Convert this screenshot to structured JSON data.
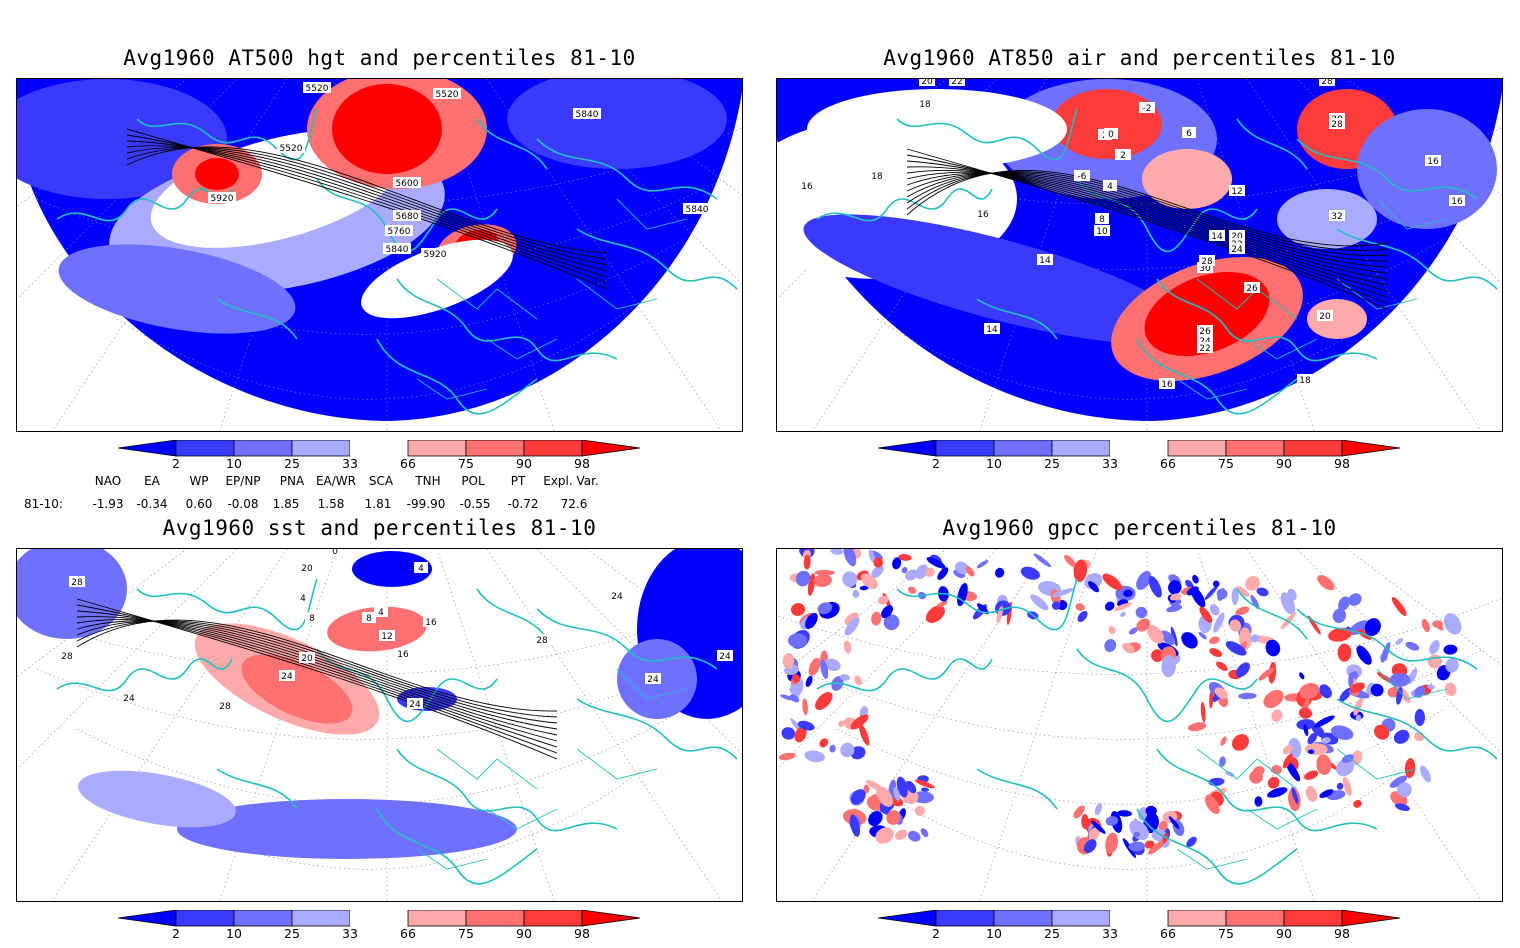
{
  "colors": {
    "blue_dark": "#0000ff",
    "blue_mid": "#3a3aff",
    "blue_light": "#7070ff",
    "blue_pale": "#aaaaff",
    "red_pale": "#ffaaaa",
    "red_light": "#ff7070",
    "red_mid": "#ff3a3a",
    "red_dark": "#ff0000",
    "coast": "#20c0c0",
    "contour": "#000000"
  },
  "panels": [
    {
      "id": "hgt",
      "title": "Avg1960 AT500 hgt and percentiles 81-10",
      "contour_labels": [
        "5520",
        "5520",
        "5520",
        "5840",
        "5920",
        "5600",
        "5680",
        "5760",
        "5840",
        "5920",
        "5840"
      ]
    },
    {
      "id": "air",
      "title": "Avg1960 AT850 air and percentiles 81-10",
      "contour_labels": [
        "20",
        "22",
        "18",
        "-2",
        "2",
        "0",
        "-2",
        "2",
        "6",
        "-6",
        "4",
        "16",
        "18",
        "16",
        "8",
        "10",
        "12",
        "14",
        "28",
        "30",
        "28",
        "20",
        "22",
        "24",
        "30",
        "28",
        "32",
        "26",
        "14",
        "16",
        "16",
        "14",
        "26",
        "24",
        "22",
        "20",
        "16",
        "18"
      ]
    },
    {
      "id": "sst",
      "title": "Avg1960 sst and percentiles 81-10",
      "contour_labels": [
        "0",
        "20",
        "4",
        "4",
        "8",
        "8",
        "4",
        "12",
        "16",
        "16",
        "20",
        "24",
        "28",
        "28",
        "24",
        "28",
        "24",
        "24",
        "28",
        "24",
        "24"
      ]
    },
    {
      "id": "gpcc",
      "title": "Avg1960 gpcc percentiles 81-10",
      "contour_labels": []
    }
  ],
  "colorbar": {
    "labels": [
      "2",
      "10",
      "25",
      "33",
      "66",
      "75",
      "90",
      "98"
    ]
  },
  "indices": {
    "headers": [
      "NAO",
      "EA",
      "WP",
      "EP/NP",
      "PNA",
      "EA/WR",
      "SCA",
      "TNH",
      "POL",
      "PT",
      "Expl. Var."
    ],
    "row_label": "81-10:",
    "values": [
      "-1.93",
      "-0.34",
      "0.60",
      "-0.08",
      "1.85",
      "1.58",
      "1.81",
      "-99.90",
      "-0.55",
      "-0.72",
      "72.6"
    ]
  }
}
